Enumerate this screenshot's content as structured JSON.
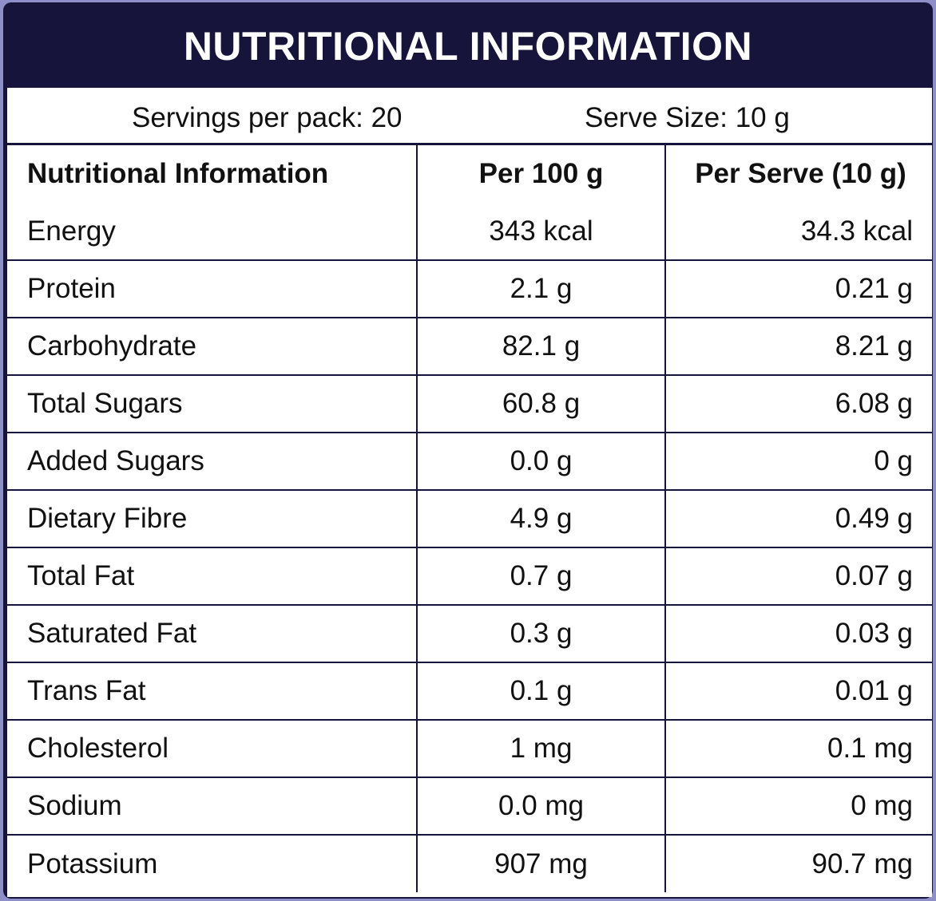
{
  "label": {
    "title": "NUTRITIONAL INFORMATION",
    "servings_per_pack": "Servings per pack: 20",
    "serve_size": "Serve Size: 10 g"
  },
  "table": {
    "headers": [
      "Nutritional Information",
      "Per 100 g",
      "Per Serve (10 g)"
    ],
    "rows": [
      [
        "Energy",
        "343 kcal",
        "34.3 kcal"
      ],
      [
        "Protein",
        "2.1 g",
        "0.21 g"
      ],
      [
        "Carbohydrate",
        "82.1 g",
        "8.21 g"
      ],
      [
        "Total Sugars",
        "60.8 g",
        "6.08 g"
      ],
      [
        "Added Sugars",
        "0.0 g",
        "0 g"
      ],
      [
        "Dietary Fibre",
        "4.9 g",
        "0.49 g"
      ],
      [
        "Total Fat",
        "0.7 g",
        "0.07 g"
      ],
      [
        "Saturated Fat",
        "0.3 g",
        "0.03 g"
      ],
      [
        "Trans Fat",
        "0.1 g",
        "0.01 g"
      ],
      [
        "Cholesterol",
        "1 mg",
        "0.1 mg"
      ],
      [
        "Sodium",
        "0.0 mg",
        "0 mg"
      ],
      [
        "Potassium",
        "907 mg",
        "90.7 mg"
      ]
    ]
  },
  "colors": {
    "header_background": "#16143a",
    "outer_background": "#8e8ec9",
    "sheet_background": "#ffffff",
    "text": "#111111"
  }
}
